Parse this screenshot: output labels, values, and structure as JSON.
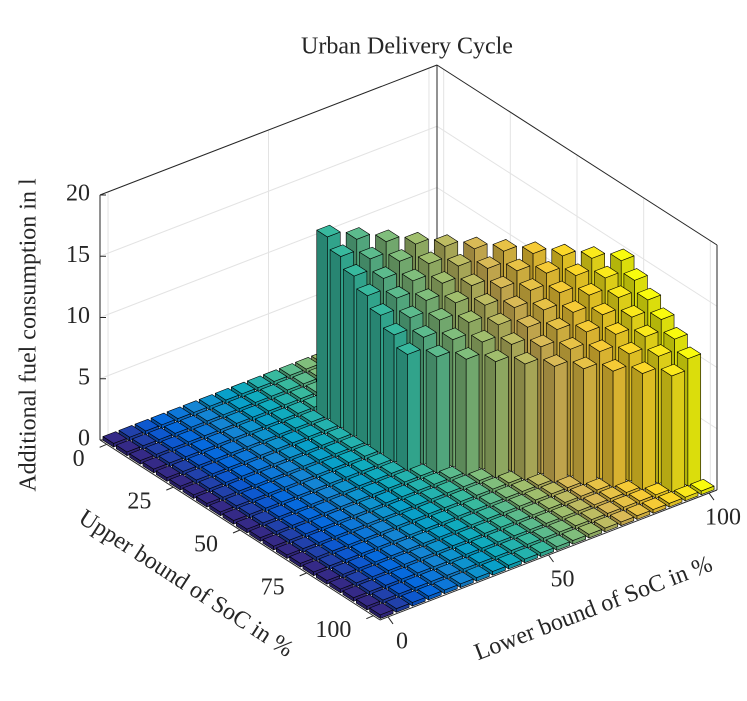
{
  "chart_data": {
    "type": "bar3",
    "title": "Urban Delivery Cycle",
    "xlabel": "Lower bound of SoC in %",
    "ylabel": "Upper bound of SoC in %",
    "zlabel": "Additional fuel consumption in l",
    "x": [
      0,
      5,
      10,
      15,
      20,
      25,
      30,
      35,
      40,
      45,
      50,
      55,
      60,
      65,
      70,
      75,
      80,
      85,
      90,
      95,
      100
    ],
    "y": [
      0,
      5,
      10,
      15,
      20,
      25,
      30,
      35,
      40,
      45,
      50,
      55,
      60,
      65,
      70,
      75,
      80,
      85,
      90,
      95,
      100
    ],
    "z": [
      [
        0.3,
        0.3,
        0.3,
        0.3,
        0.3,
        0.3,
        0.3,
        0.3,
        0.3,
        0.3,
        0.3,
        0.3,
        0.3,
        0.3,
        0.3,
        0.3,
        0.3,
        0.3,
        0.3,
        0.3,
        0.3
      ],
      [
        0.3,
        0.3,
        0.3,
        0.3,
        0.3,
        0.3,
        0.3,
        0.3,
        0.3,
        0.3,
        0.3,
        0.3,
        0.3,
        0.3,
        0.3,
        0.3,
        0.3,
        0.3,
        0.3,
        0.3,
        0.3
      ],
      [
        0.3,
        0.3,
        0.3,
        0.3,
        0.3,
        0.3,
        0.3,
        0.3,
        0.3,
        0.3,
        0.3,
        0.3,
        0.3,
        0.3,
        0.3,
        0.3,
        0.3,
        0.3,
        0.3,
        0.3,
        0.3
      ],
      [
        0.3,
        0.3,
        0.3,
        0.3,
        0.3,
        0.3,
        0.3,
        0.3,
        0.3,
        0.3,
        0.3,
        0.3,
        0.3,
        0.3,
        0.3,
        0.3,
        0.3,
        0.3,
        0.3,
        0.3,
        0.3
      ],
      [
        0.3,
        0.3,
        0.3,
        0.3,
        0.3,
        0.3,
        0.3,
        0.3,
        0.3,
        0.3,
        14.9,
        0.3,
        0.3,
        0.3,
        0.3,
        0.3,
        0.3,
        0.3,
        0.3,
        0.3,
        0.3
      ],
      [
        0.3,
        0.3,
        0.3,
        0.3,
        0.3,
        0.3,
        0.3,
        0.3,
        0.3,
        0.3,
        14.0,
        14.9,
        0.3,
        0.3,
        0.3,
        0.3,
        0.3,
        0.3,
        0.3,
        0.3,
        0.3
      ],
      [
        0.3,
        0.3,
        0.3,
        0.3,
        0.3,
        0.3,
        0.3,
        0.3,
        0.3,
        0.3,
        13.1,
        14.0,
        14.9,
        0.3,
        0.3,
        0.3,
        0.3,
        0.3,
        0.3,
        0.3,
        0.3
      ],
      [
        0.3,
        0.3,
        0.3,
        0.3,
        0.3,
        0.3,
        0.3,
        0.3,
        0.3,
        0.3,
        12.2,
        13.1,
        14.0,
        14.9,
        0.3,
        0.3,
        0.3,
        0.3,
        0.3,
        0.3,
        0.3
      ],
      [
        0.3,
        0.3,
        0.3,
        0.3,
        0.3,
        0.3,
        0.3,
        0.3,
        0.3,
        0.3,
        11.3,
        12.2,
        13.1,
        14.0,
        14.9,
        0.3,
        0.3,
        0.3,
        0.3,
        0.3,
        0.3
      ],
      [
        0.3,
        0.3,
        0.3,
        0.3,
        0.3,
        0.3,
        0.3,
        0.3,
        0.3,
        0.3,
        10.4,
        11.3,
        12.2,
        13.1,
        14.0,
        14.9,
        0.3,
        0.3,
        0.3,
        0.3,
        0.3
      ],
      [
        0.3,
        0.3,
        0.3,
        0.3,
        0.3,
        0.3,
        0.3,
        0.3,
        0.3,
        0.3,
        9.5,
        10.4,
        11.3,
        12.2,
        13.1,
        14.0,
        14.9,
        0.3,
        0.3,
        0.3,
        0.3
      ],
      [
        0.3,
        0.3,
        0.3,
        0.3,
        0.3,
        0.3,
        0.3,
        0.3,
        0.3,
        0.3,
        0.3,
        9.5,
        10.4,
        11.3,
        12.2,
        13.1,
        14.0,
        14.9,
        0.3,
        0.3,
        0.3
      ],
      [
        0.3,
        0.3,
        0.3,
        0.3,
        0.3,
        0.3,
        0.3,
        0.3,
        0.3,
        0.3,
        0.3,
        0.3,
        9.5,
        10.4,
        11.3,
        12.2,
        13.1,
        14.0,
        14.9,
        0.3,
        0.3
      ],
      [
        0.3,
        0.3,
        0.3,
        0.3,
        0.3,
        0.3,
        0.3,
        0.3,
        0.3,
        0.3,
        0.3,
        0.3,
        0.3,
        9.5,
        10.4,
        11.3,
        12.2,
        13.1,
        14.0,
        14.9,
        0.3
      ],
      [
        0.3,
        0.3,
        0.3,
        0.3,
        0.3,
        0.3,
        0.3,
        0.3,
        0.3,
        0.3,
        0.3,
        0.3,
        0.3,
        0.3,
        9.5,
        10.4,
        11.3,
        12.2,
        13.1,
        14.0,
        14.9
      ],
      [
        0.3,
        0.3,
        0.3,
        0.3,
        0.3,
        0.3,
        0.3,
        0.3,
        0.3,
        0.3,
        0.3,
        0.3,
        0.3,
        0.3,
        0.3,
        9.5,
        10.4,
        11.3,
        12.2,
        13.1,
        14.0
      ],
      [
        0.3,
        0.3,
        0.3,
        0.3,
        0.3,
        0.3,
        0.3,
        0.3,
        0.3,
        0.3,
        0.3,
        0.3,
        0.3,
        0.3,
        0.3,
        0.3,
        9.5,
        10.4,
        11.3,
        12.2,
        13.1
      ],
      [
        0.3,
        0.3,
        0.3,
        0.3,
        0.3,
        0.3,
        0.3,
        0.3,
        0.3,
        0.3,
        0.3,
        0.3,
        0.3,
        0.3,
        0.3,
        0.3,
        0.3,
        9.5,
        10.4,
        11.3,
        12.2
      ],
      [
        0.3,
        0.3,
        0.3,
        0.3,
        0.3,
        0.3,
        0.3,
        0.3,
        0.3,
        0.3,
        0.3,
        0.3,
        0.3,
        0.3,
        0.3,
        0.3,
        0.3,
        0.3,
        9.5,
        10.4,
        11.3
      ],
      [
        0.3,
        0.3,
        0.3,
        0.3,
        0.3,
        0.3,
        0.3,
        0.3,
        0.3,
        0.3,
        0.3,
        0.3,
        0.3,
        0.3,
        0.3,
        0.3,
        0.3,
        0.3,
        0.3,
        9.5,
        10.4
      ],
      [
        0.3,
        0.3,
        0.3,
        0.3,
        0.3,
        0.3,
        0.3,
        0.3,
        0.3,
        0.3,
        0.3,
        0.3,
        0.3,
        0.3,
        0.3,
        0.3,
        0.3,
        0.3,
        0.3,
        0.3,
        0.3
      ]
    ],
    "xlim": [
      -2.5,
      102.5
    ],
    "xticks": [
      0,
      50,
      100
    ],
    "ylim": [
      -2.5,
      102.5
    ],
    "yticks": [
      0,
      25,
      50,
      75,
      100
    ],
    "zlim": [
      0,
      20
    ],
    "zticks": [
      0,
      5,
      10,
      15,
      20
    ],
    "grid": true,
    "colormap": "parula"
  }
}
